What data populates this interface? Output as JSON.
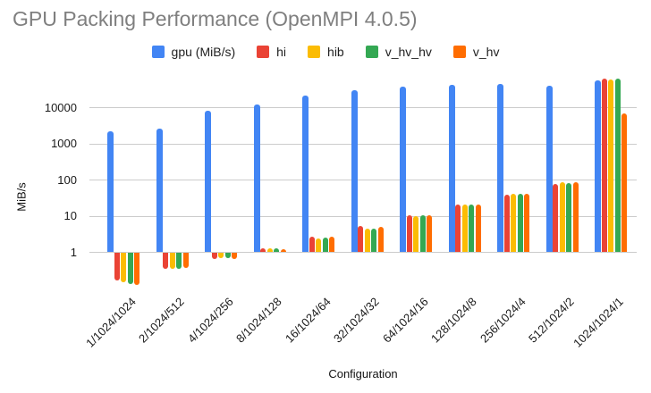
{
  "chart_data": {
    "type": "bar",
    "title": "GPU Packing Performance (OpenMPI 4.0.5)",
    "xlabel": "Configuration",
    "ylabel": "MiB/s",
    "y_scale": "log",
    "y_ticks": [
      1,
      10,
      100,
      1000,
      10000
    ],
    "ylim": [
      0.1,
      100000
    ],
    "grid": true,
    "legend_position": "top",
    "categories": [
      "1/1024/1024",
      "2/1024/512",
      "4/1024/256",
      "8/1024/128",
      "16/1024/64",
      "32/1024/32",
      "64/1024/16",
      "128/1024/8",
      "256/1024/4",
      "512/1024/2",
      "1024/1024/1"
    ],
    "series": [
      {
        "name": "gpu (MiB/s)",
        "color": "#4285F4",
        "values": [
          2100,
          2500,
          7900,
          11800,
          21500,
          30000,
          36500,
          41000,
          43500,
          39500,
          55000
        ]
      },
      {
        "name": "hi",
        "color": "#EA4335",
        "values": [
          0.17,
          0.36,
          0.68,
          1.26,
          2.7,
          5.2,
          10.4,
          20.5,
          38,
          76,
          61000
        ]
      },
      {
        "name": "hib",
        "color": "#FBBC04",
        "values": [
          0.15,
          0.35,
          0.7,
          1.23,
          2.4,
          4.3,
          9.9,
          19.8,
          41,
          83,
          58000
        ]
      },
      {
        "name": "v_hv_hv",
        "color": "#34A853",
        "values": [
          0.14,
          0.36,
          0.7,
          1.23,
          2.5,
          4.4,
          10.1,
          20.0,
          41,
          80,
          63000
        ]
      },
      {
        "name": "v_hv",
        "color": "#FF6D01",
        "values": [
          0.13,
          0.39,
          0.67,
          1.18,
          2.6,
          5.0,
          10.3,
          20.6,
          40,
          84,
          6600
        ]
      }
    ]
  }
}
